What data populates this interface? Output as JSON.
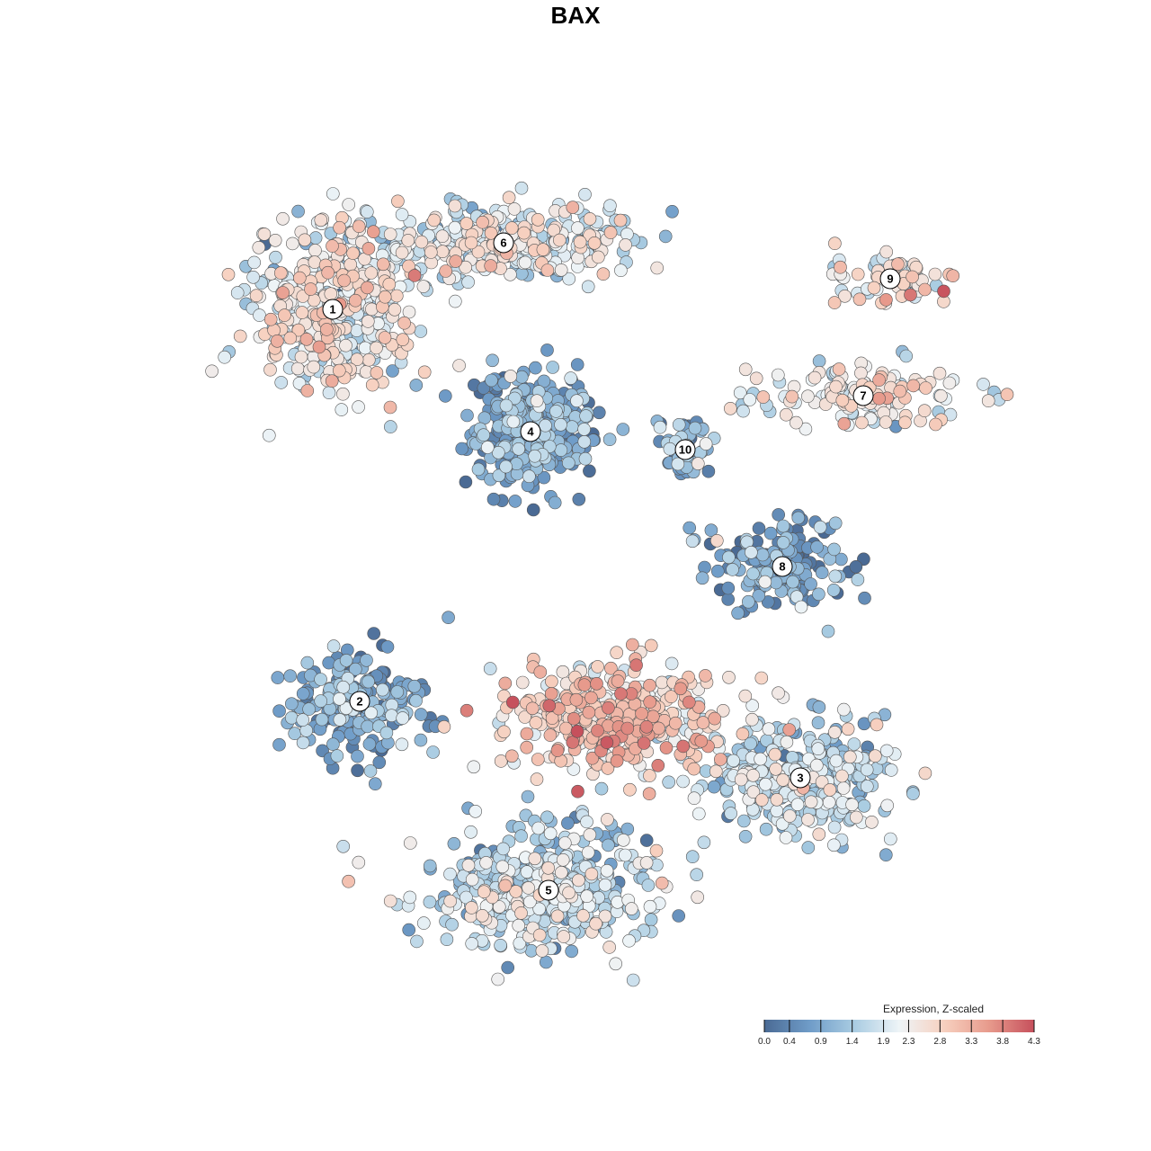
{
  "chart_data": {
    "type": "scatter",
    "title": "BAX",
    "xlabel": "",
    "ylabel": "",
    "grid": false,
    "axes_visible": false,
    "legend": {
      "title": "Expression, Z-scaled",
      "placement": "bottom-right",
      "ticks": [
        "0.0",
        "0.4",
        "0.9",
        "1.4",
        "1.9",
        "2.3",
        "2.8",
        "3.3",
        "3.8",
        "4.3"
      ],
      "range": [
        0.0,
        4.3
      ],
      "colors": [
        "#4a6a94",
        "#6f9cc8",
        "#a9cce2",
        "#eef4f7",
        "#f7d0bf",
        "#e79a8c",
        "#c6505c"
      ]
    },
    "clusters": [
      {
        "label": "1",
        "center": [
          370,
          344
        ],
        "spread": [
          85,
          85
        ],
        "mean": 2.2,
        "count": 430
      },
      {
        "label": "6",
        "center": [
          560,
          270
        ],
        "spread": [
          150,
          40
        ],
        "mean": 2.0,
        "count": 350
      },
      {
        "label": "9",
        "center": [
          990,
          310
        ],
        "spread": [
          55,
          30
        ],
        "mean": 2.5,
        "count": 80
      },
      {
        "label": "7",
        "center": [
          960,
          440
        ],
        "spread": [
          110,
          30
        ],
        "mean": 2.2,
        "count": 150
      },
      {
        "label": "4",
        "center": [
          590,
          480
        ],
        "spread": [
          65,
          55
        ],
        "mean": 0.8,
        "count": 330
      },
      {
        "label": "10",
        "center": [
          762,
          500
        ],
        "spread": [
          30,
          35
        ],
        "mean": 0.9,
        "count": 60
      },
      {
        "label": "8",
        "center": [
          870,
          630
        ],
        "spread": [
          70,
          45
        ],
        "mean": 0.7,
        "count": 170
      },
      {
        "label": "2",
        "center": [
          400,
          780
        ],
        "spread": [
          75,
          55
        ],
        "mean": 0.8,
        "count": 230
      },
      {
        "label": "3",
        "center": [
          890,
          865
        ],
        "spread": [
          95,
          55
        ],
        "mean": 1.6,
        "count": 330
      },
      {
        "label": "5",
        "center": [
          610,
          990
        ],
        "spread": [
          115,
          60
        ],
        "mean": 1.6,
        "count": 420
      },
      {
        "label": "",
        "center": [
          680,
          800
        ],
        "spread": [
          110,
          60
        ],
        "mean": 2.8,
        "count": 330
      }
    ]
  }
}
